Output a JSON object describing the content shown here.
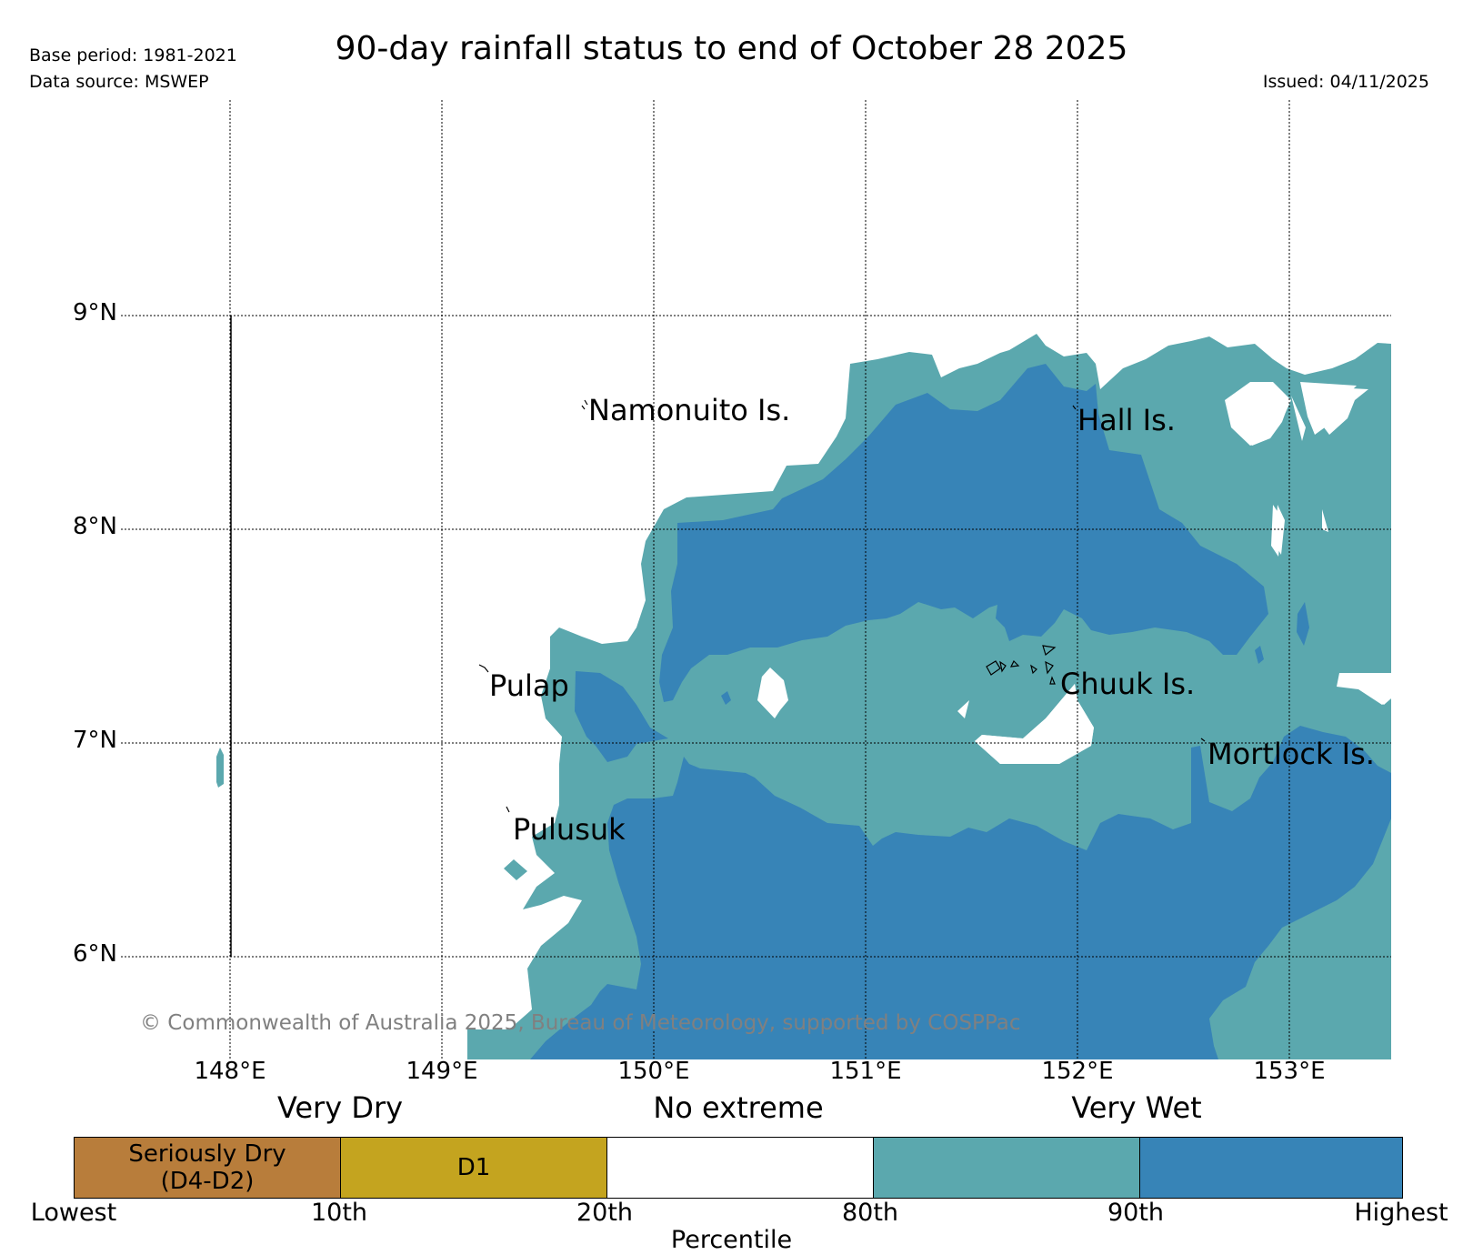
{
  "header": {
    "title": "90-day rainfall status to end of October 28 2025",
    "base_period": "Base period: 1981-2021",
    "data_source": "Data source: MSWEP",
    "issued": "Issued: 04/11/2025"
  },
  "map": {
    "lat_ticks": [
      "9°N",
      "8°N",
      "7°N",
      "6°N"
    ],
    "lon_ticks": [
      "148°E",
      "149°E",
      "150°E",
      "151°E",
      "152°E",
      "153°E"
    ],
    "places": {
      "namonuito": "Namonuito Is.",
      "hall": "Hall Is.",
      "pulap": "Pulap",
      "chuuk": "Chuuk Is.",
      "mortlock": "Mortlock Is.",
      "pulusuk": "Pulusuk"
    },
    "copyright": "© Commonwealth of Australia 2025, Bureau of Meteorology, supported by COSPPac",
    "colors": {
      "wet_80_90": "#5ba8ae",
      "very_wet_90_plus": "#3784b7",
      "seriously_dry": "#b87d3b",
      "d1": "#c4a41f",
      "no_extreme": "#ffffff",
      "grid": "#000000"
    }
  },
  "legend": {
    "categories": {
      "very_dry": "Very Dry",
      "no_extreme": "No extreme",
      "very_wet": "Very Wet"
    },
    "segments": {
      "seriously_dry_line1": "Seriously Dry",
      "seriously_dry_line2": "(D4-D2)",
      "d1": "D1"
    },
    "percentiles": {
      "p0": "Lowest",
      "p10": "10th",
      "p20": "20th",
      "p80": "80th",
      "p90": "90th",
      "p100": "Highest"
    },
    "axis_label": "Percentile"
  }
}
